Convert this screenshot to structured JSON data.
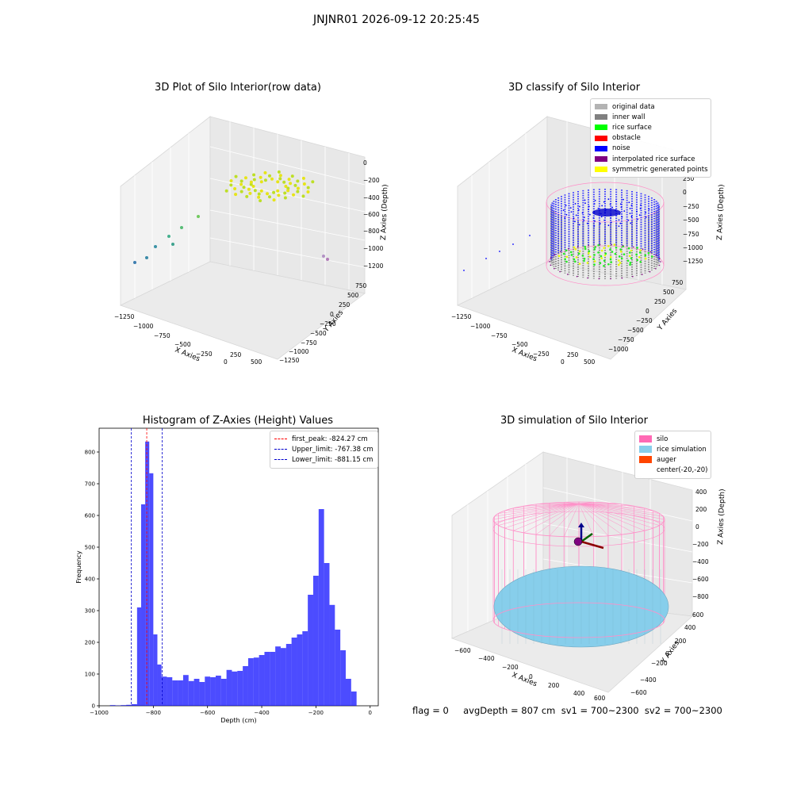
{
  "figure": {
    "suptitle": "JNJNR01 2026-09-12 20:25:45",
    "footer": "flag = 0     avgDepth = 807 cm  sv1 = 700~2300  sv2 = 700~2300"
  },
  "panels": {
    "raw": {
      "title": "3D Plot of Silo Interior(row data)",
      "xlabel": "X Axies",
      "ylabel": "Y Axies",
      "zlabel": "Z Axies (Depth)",
      "xticks": [
        "−1250",
        "−1000",
        "−750",
        "−500",
        "−250",
        "0",
        "250",
        "500"
      ],
      "yticks": [
        "750",
        "500",
        "250",
        "0",
        "−250",
        "−500",
        "−750",
        "−1000",
        "−1250"
      ],
      "zticks": [
        "0",
        "−200",
        "−400",
        "−600",
        "−800",
        "−1000",
        "−1200"
      ]
    },
    "classify": {
      "title": "3D classify of Silo Interior",
      "xlabel": "X Axies",
      "ylabel": "Y Axies",
      "zlabel": "Z Axies (Depth)",
      "xticks": [
        "−1250",
        "−1000",
        "−750",
        "−500",
        "−250",
        "0",
        "250",
        "500"
      ],
      "yticks": [
        "750",
        "500",
        "250",
        "0",
        "−250",
        "−500",
        "−750",
        "−1000"
      ],
      "zticks": [
        "250",
        "0",
        "−250",
        "−500",
        "−750",
        "−1000",
        "−1250"
      ],
      "legend": [
        {
          "label": "original data",
          "color": "#b3b3b3"
        },
        {
          "label": "inner wall",
          "color": "#808080"
        },
        {
          "label": "rice surface",
          "color": "#00ff00"
        },
        {
          "label": "obstacle",
          "color": "#ff0000"
        },
        {
          "label": "noise",
          "color": "#0000ff"
        },
        {
          "label": "interpolated rice surface",
          "color": "#800080"
        },
        {
          "label": "symmetric generated points",
          "color": "#ffff00"
        }
      ]
    },
    "simulation": {
      "title": "3D simulation of Silo Interior",
      "xlabel": "X Axies",
      "ylabel": "Y Axies",
      "zlabel": "Z Axies (Depth)",
      "xticks": [
        "−600",
        "−400",
        "−200",
        "0",
        "200",
        "400",
        "600"
      ],
      "yticks": [
        "600",
        "400",
        "200",
        "0",
        "−200",
        "−400",
        "−600"
      ],
      "zticks": [
        "400",
        "200",
        "0",
        "−200",
        "−400",
        "−600",
        "−800"
      ],
      "legend": [
        {
          "label": "silo",
          "color": "#ff69b4"
        },
        {
          "label": "rice simulation",
          "color": "#87ceeb"
        },
        {
          "label": "auger",
          "color": "#ff4500"
        },
        {
          "label": "center(-20,-20)",
          "color": "#ffffff"
        }
      ]
    }
  },
  "chart_data": {
    "type": "bar",
    "title": "Histogram of Z-Axies (Height) Values",
    "xlabel": "Depth (cm)",
    "ylabel": "Frequency",
    "xlim": [
      -1000,
      30
    ],
    "ylim": [
      0,
      875
    ],
    "xticks": [
      -1000,
      -800,
      -600,
      -400,
      -200,
      0
    ],
    "yticks": [
      0,
      100,
      200,
      300,
      400,
      500,
      600,
      700,
      800
    ],
    "bar_color": "#0000ff",
    "bin_width": 20,
    "bins": [
      {
        "x0": -960,
        "count": 2
      },
      {
        "x0": -940,
        "count": 1
      },
      {
        "x0": -920,
        "count": 2
      },
      {
        "x0": -900,
        "count": 3
      },
      {
        "x0": -880,
        "count": 5
      },
      {
        "x0": -860,
        "count": 310
      },
      {
        "x0": -845,
        "count": 635
      },
      {
        "x0": -830,
        "count": 833
      },
      {
        "x0": -815,
        "count": 733
      },
      {
        "x0": -800,
        "count": 225
      },
      {
        "x0": -785,
        "count": 130
      },
      {
        "x0": -770,
        "count": 92
      },
      {
        "x0": -750,
        "count": 90
      },
      {
        "x0": -730,
        "count": 80
      },
      {
        "x0": -710,
        "count": 80
      },
      {
        "x0": -690,
        "count": 97
      },
      {
        "x0": -670,
        "count": 78
      },
      {
        "x0": -650,
        "count": 85
      },
      {
        "x0": -630,
        "count": 75
      },
      {
        "x0": -610,
        "count": 92
      },
      {
        "x0": -590,
        "count": 90
      },
      {
        "x0": -570,
        "count": 95
      },
      {
        "x0": -550,
        "count": 85
      },
      {
        "x0": -530,
        "count": 113
      },
      {
        "x0": -510,
        "count": 108
      },
      {
        "x0": -490,
        "count": 110
      },
      {
        "x0": -470,
        "count": 125
      },
      {
        "x0": -450,
        "count": 150
      },
      {
        "x0": -430,
        "count": 152
      },
      {
        "x0": -410,
        "count": 160
      },
      {
        "x0": -390,
        "count": 170
      },
      {
        "x0": -370,
        "count": 170
      },
      {
        "x0": -350,
        "count": 187
      },
      {
        "x0": -330,
        "count": 182
      },
      {
        "x0": -310,
        "count": 195
      },
      {
        "x0": -290,
        "count": 215
      },
      {
        "x0": -270,
        "count": 225
      },
      {
        "x0": -250,
        "count": 235
      },
      {
        "x0": -230,
        "count": 350
      },
      {
        "x0": -210,
        "count": 410
      },
      {
        "x0": -190,
        "count": 620
      },
      {
        "x0": -170,
        "count": 450
      },
      {
        "x0": -150,
        "count": 318
      },
      {
        "x0": -130,
        "count": 240
      },
      {
        "x0": -110,
        "count": 175
      },
      {
        "x0": -90,
        "count": 85
      },
      {
        "x0": -70,
        "count": 45
      }
    ],
    "lines": [
      {
        "label": "first_peak: -824.27 cm",
        "x": -824.27,
        "color": "#ff0000"
      },
      {
        "label": "Upper_limit: -767.38 cm",
        "x": -767.38,
        "color": "#0000cd"
      },
      {
        "label": "Lower_limit: -881.15 cm",
        "x": -881.15,
        "color": "#0000cd"
      }
    ]
  }
}
